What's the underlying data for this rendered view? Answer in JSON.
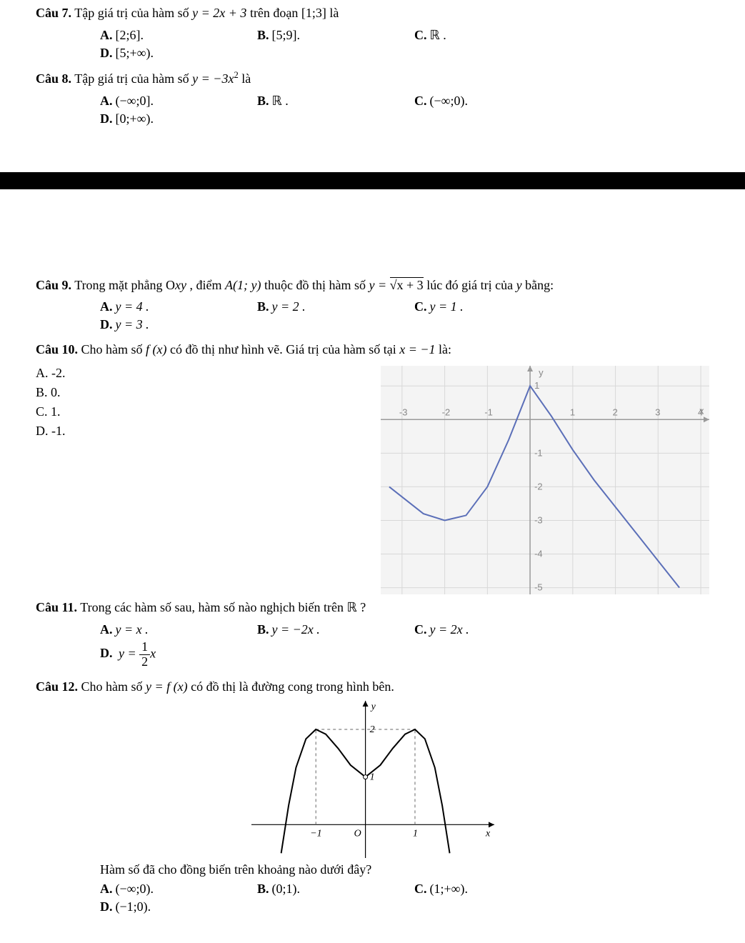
{
  "q7": {
    "label": "Câu 7.",
    "text_pre": "Tập giá trị của hàm số ",
    "eq": "y = 2x + 3",
    "text_mid": " trên đoạn ",
    "interval": "[1;3]",
    "text_post": " là",
    "opts": {
      "A": "[2;6].",
      "B": "[5;9].",
      "C": "ℝ .",
      "D": "[5;+∞)."
    }
  },
  "q8": {
    "label": "Câu 8.",
    "text_pre": "Tập giá trị của hàm số ",
    "eq_base": "y = −3x",
    "eq_exp": "2",
    "text_post": " là",
    "opts": {
      "A": "(−∞;0].",
      "B": "ℝ .",
      "C": "(−∞;0).",
      "D": "[0;+∞)."
    }
  },
  "q9": {
    "label": "Câu 9.",
    "text_pre": "Trong mặt phẳng O",
    "xy": "xy",
    "text_mid1": ", điểm ",
    "point": "A(1; y)",
    "text_mid2": " thuộc đồ thị hàm số ",
    "eq_pre": "y = ",
    "eq_rad": "√(x + 3)",
    "rad_inner": "x + 3",
    "text_mid3": " lúc đó giá trị của ",
    "yvar": "y",
    "text_post": " bằng:",
    "opts": {
      "A": "y = 4 .",
      "B": "y = 2 .",
      "C": "y = 1 .",
      "D": "y = 3 ."
    }
  },
  "q10": {
    "label": "Câu 10.",
    "text_pre": "Cho hàm số ",
    "fx": "f (x)",
    "text_mid": " có đồ thị như hình vẽ. Giá trị của hàm số tại ",
    "xval": "x = −1",
    "text_post": " là:",
    "opts": {
      "A": "-2.",
      "B": "0.",
      "C": "1.",
      "D": "-1."
    },
    "graph": {
      "type": "line",
      "background_color": "#f4f4f4",
      "grid_color": "#d8d8d8",
      "axis_color": "#9a9a9a",
      "curve_color": "#5b6fb8",
      "label_color": "#888888",
      "xlim": [
        -3.5,
        4.2
      ],
      "ylim": [
        -5.2,
        1.6
      ],
      "xticks": [
        -3,
        -2,
        -1,
        0,
        1,
        2,
        3,
        4
      ],
      "yticks": [
        -5,
        -4,
        -3,
        -2,
        -1,
        1
      ],
      "xlabel": "x",
      "ylabel": "y",
      "points": [
        [
          -3.3,
          -2.0
        ],
        [
          -3.0,
          -2.3
        ],
        [
          -2.5,
          -2.8
        ],
        [
          -2.0,
          -3.0
        ],
        [
          -1.5,
          -2.85
        ],
        [
          -1.0,
          -2.0
        ],
        [
          -0.5,
          -0.6
        ],
        [
          0.0,
          1.0
        ],
        [
          0.5,
          0.1
        ],
        [
          1.0,
          -0.9
        ],
        [
          1.5,
          -1.8
        ],
        [
          2.0,
          -2.6
        ],
        [
          2.5,
          -3.4
        ],
        [
          3.0,
          -4.2
        ],
        [
          3.5,
          -5.0
        ]
      ]
    }
  },
  "q11": {
    "label": "Câu 11.",
    "text_pre": "Trong các hàm số sau, hàm số nào nghịch biến trên ",
    "set": "ℝ",
    "text_post": " ?",
    "opts": {
      "A": "y = x .",
      "B": "y = −2x .",
      "C": "y = 2x .",
      "D_pre": "y = ",
      "D_frac_num": "1",
      "D_frac_den": "2",
      "D_post": "x"
    }
  },
  "q12": {
    "label": "Câu 12.",
    "text_pre": "Cho hàm số ",
    "eq": "y = f (x)",
    "text_post": " có đồ thị là đường cong trong hình bên.",
    "graph": {
      "type": "line",
      "curve_color": "#000000",
      "axis_color": "#000000",
      "dash_color": "#666666",
      "xlim": [
        -2.3,
        2.6
      ],
      "ylim": [
        -0.7,
        2.6
      ],
      "xticks": [
        -1,
        1
      ],
      "yticks": [
        1,
        2
      ],
      "xlabel": "x",
      "ylabel": "y",
      "origin": "O",
      "points": [
        [
          -1.7,
          -0.6
        ],
        [
          -1.55,
          0.4
        ],
        [
          -1.4,
          1.2
        ],
        [
          -1.2,
          1.8
        ],
        [
          -1.0,
          2.0
        ],
        [
          -0.8,
          1.9
        ],
        [
          -0.55,
          1.6
        ],
        [
          -0.3,
          1.25
        ],
        [
          0.0,
          1.0
        ],
        [
          0.3,
          1.25
        ],
        [
          0.55,
          1.6
        ],
        [
          0.8,
          1.9
        ],
        [
          1.0,
          2.0
        ],
        [
          1.2,
          1.8
        ],
        [
          1.4,
          1.2
        ],
        [
          1.55,
          0.4
        ],
        [
          1.7,
          -0.6
        ]
      ],
      "dashes": [
        {
          "from": [
            -1,
            0
          ],
          "to": [
            -1,
            2
          ]
        },
        {
          "from": [
            1,
            0
          ],
          "to": [
            1,
            2
          ]
        },
        {
          "from": [
            -1,
            2
          ],
          "to": [
            1,
            2
          ]
        }
      ]
    },
    "followup": "Hàm số đã cho đồng biến trên khoảng nào dưới đây?",
    "opts": {
      "A": "(−∞;0).",
      "B": "(0;1).",
      "C": "(1;+∞).",
      "D": "(−1;0)."
    }
  },
  "optlabels": {
    "A": "A.",
    "B": "B.",
    "C": "C.",
    "D": "D."
  }
}
